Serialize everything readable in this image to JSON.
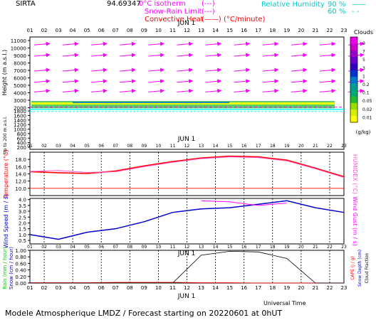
{
  "header": {
    "station": "SIRTA",
    "coords": "94.69347",
    "isotherm_label": "0°C isotherm",
    "snow_rain_label": "Snow-Rain Limit",
    "convective_label": "Convective Heat",
    "convective_unit": "(°C/minute)",
    "rh_label": "Relative Humidity",
    "rh_90": "90 %",
    "rh_60": "60 %"
  },
  "colors": {
    "magenta": "#ff00ff",
    "cyan": "#00ffff",
    "red": "#ff0000",
    "blue": "#0000cc",
    "pink": "#ff55cc",
    "black": "#000000"
  },
  "date_label": "JUN 1",
  "footer": {
    "universal_time": "Universal Time",
    "model": "Modele Atmospherique LMDZ / Forecast starting on 20220601 at 0hUT"
  },
  "chart_data": [
    {
      "type": "heatmap",
      "panel": "clouds",
      "hours": [
        "01",
        "02",
        "03",
        "04",
        "05",
        "06",
        "07",
        "08",
        "09",
        "10",
        "11",
        "12",
        "13",
        "14",
        "15",
        "16",
        "17",
        "18",
        "19",
        "20",
        "21",
        "22",
        "23"
      ],
      "ylabel": "Height (m a.s.l.)",
      "ylabel_low": "Up to 200 m a.s.l.",
      "yticks_upper": [
        11000,
        10000,
        9000,
        8000,
        7000,
        6000,
        5000,
        4000,
        3000,
        2000
      ],
      "yticks_lower": [
        1800,
        1600,
        1400,
        1200,
        1000,
        800,
        600,
        400,
        200
      ],
      "colorbar_title": "Clouds",
      "colorbar_unit": "(g/kg)",
      "colorbar_ticks": [
        "9",
        "7",
        "5",
        "3",
        "1",
        "0.2",
        "0.1",
        "0.05",
        "0.02",
        "0.01"
      ],
      "colorbar_colors": [
        "#ffff00",
        "#d8ee00",
        "#99dd00",
        "#22bb33",
        "#00aa77",
        "#009999",
        "#0077cc",
        "#0033cc",
        "#3300bb",
        "#6600cc",
        "#9900cc",
        "#cc00cc",
        "#ee00ee"
      ],
      "cloud_layer_m": [
        2300,
        2900
      ],
      "isotherm_m": 2350,
      "wind_rows_m": [
        10500,
        9000,
        7000,
        5500,
        4200
      ],
      "wind_cols_hours": [
        1,
        3,
        5,
        7,
        9,
        11,
        13,
        15,
        17,
        19,
        21,
        23
      ]
    },
    {
      "type": "line",
      "panel": "temperature",
      "ylabel": "Temperature (°C)",
      "ylabel_right": "HUMIDEX (°C)",
      "yticks": [
        "18.0",
        "16.0",
        "14.0",
        "12.0",
        "10.0"
      ],
      "ylim": [
        8,
        20
      ],
      "threshold_line": 10,
      "x": [
        1,
        3,
        5,
        7,
        9,
        11,
        13,
        15,
        17,
        19,
        21,
        23
      ],
      "series": [
        {
          "name": "Temperature",
          "values": [
            14.6,
            14.3,
            14.1,
            14.8,
            16.2,
            17.4,
            18.4,
            18.9,
            18.7,
            17.8,
            15.6,
            13.2
          ]
        },
        {
          "name": "HUMIDEX",
          "values": [
            14.7,
            14.9,
            14.4,
            14.6,
            16.0,
            17.2,
            18.2,
            18.7,
            18.5,
            17.6,
            15.4,
            13.0
          ]
        }
      ]
    },
    {
      "type": "line",
      "panel": "wind",
      "ylabel": "Wind Speed (m / s)",
      "ylabel_right": "Wind Gust (m / s)",
      "yticks": [
        "4.0",
        "3.5",
        "3.0",
        "2.5",
        "2.0",
        "1.5",
        "1.0",
        "0.5"
      ],
      "ylim": [
        0.2,
        4.1
      ],
      "x": [
        1,
        3,
        5,
        7,
        9,
        11,
        13,
        15,
        17,
        19,
        21,
        23
      ],
      "series": [
        {
          "name": "Wind Speed",
          "values": [
            1.0,
            0.6,
            1.2,
            1.5,
            2.1,
            2.9,
            3.2,
            3.3,
            3.6,
            3.9,
            3.3,
            2.9
          ]
        },
        {
          "name": "Wind Gust",
          "values": [
            null,
            null,
            null,
            null,
            null,
            null,
            3.9,
            3.8,
            3.5,
            3.7,
            null,
            null
          ]
        }
      ]
    },
    {
      "type": "line",
      "panel": "precipitation",
      "ylabel": "Rain (mm / hour)",
      "ylabel2": "Snow (cm / hour)",
      "ylabel_right": "CAPE (J / g)",
      "ylabel_right2": "Snow Depth (cm)",
      "ylabel_right3": "Cloud Fraction",
      "yticks": [
        "1.00",
        "0.80",
        "0.60",
        "0.40",
        "0.20",
        "0.00"
      ],
      "ylim": [
        0,
        1
      ],
      "x": [
        1,
        3,
        5,
        7,
        9,
        11,
        13,
        15,
        17,
        19,
        21,
        23
      ],
      "series": [
        {
          "name": "Rain",
          "values": [
            0.01,
            0.01,
            0.01,
            0.02,
            0.02,
            0.02,
            0.01,
            0.01,
            0.0,
            0.0,
            0.0,
            0.0
          ]
        },
        {
          "name": "Cloud Fraction",
          "values": [
            0.0,
            0.0,
            0.0,
            0.0,
            0.0,
            0.0,
            0.85,
            0.97,
            0.95,
            0.75,
            0.0,
            0.0
          ]
        }
      ]
    }
  ]
}
